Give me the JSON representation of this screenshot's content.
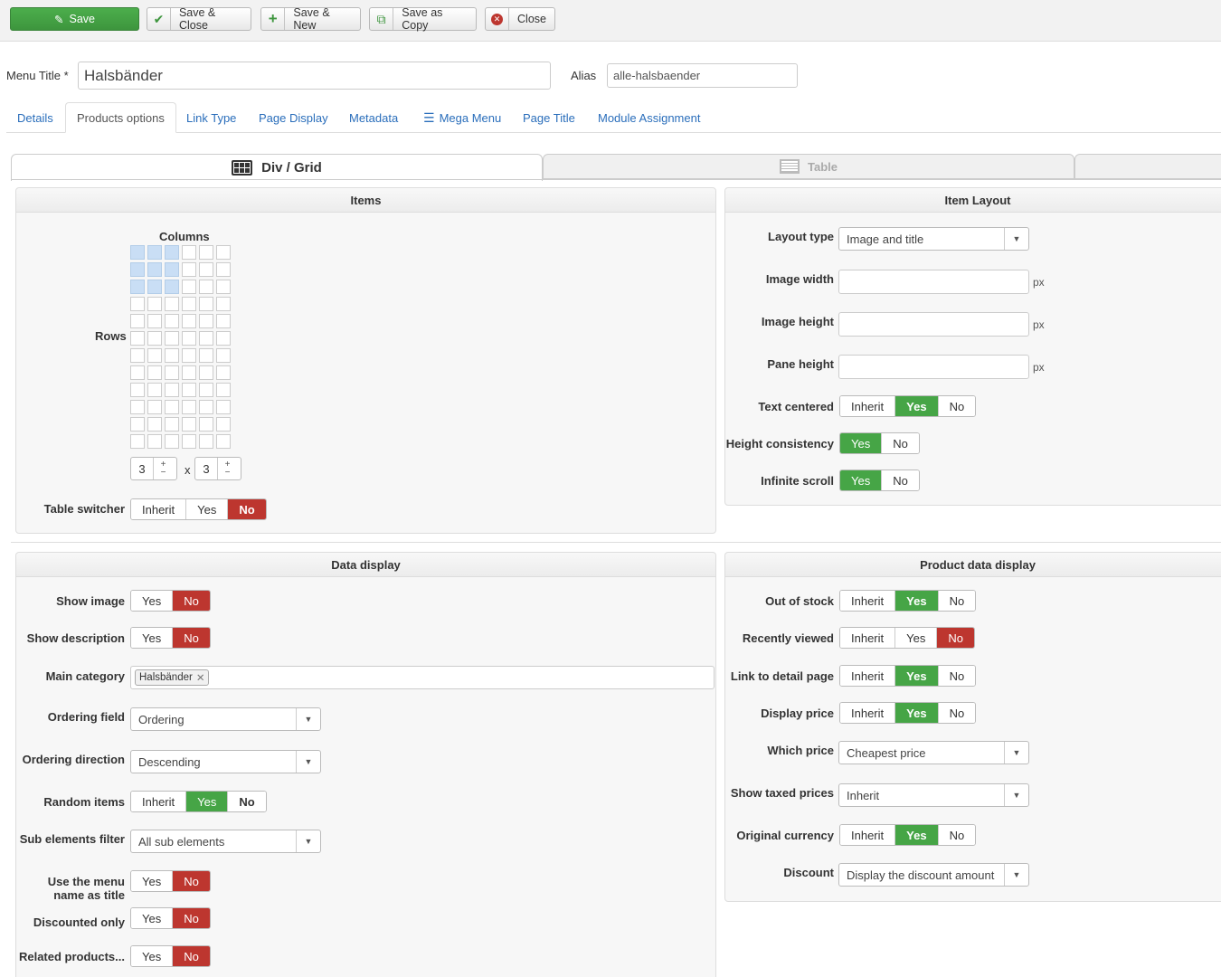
{
  "toolbar": {
    "save": "Save",
    "save_close": "Save & Close",
    "save_new": "Save & New",
    "save_copy": "Save as Copy",
    "close": "Close"
  },
  "header": {
    "menu_title_label": "Menu Title *",
    "menu_title_value": "Halsbänder",
    "alias_label": "Alias",
    "alias_value": "alle-halsbaender"
  },
  "tabs": [
    "Details",
    "Products options",
    "Link Type",
    "Page Display",
    "Metadata",
    "Mega Menu",
    "Page Title",
    "Module Assignment"
  ],
  "view_tabs": {
    "grid": "Div / Grid",
    "table": "Table"
  },
  "items": {
    "title": "Items",
    "columns_label": "Columns",
    "rows_label": "Rows",
    "grid_rows": 12,
    "grid_cols": 6,
    "selected_cols": 3,
    "selected_rows": 3,
    "col_value": "3",
    "row_value": "3",
    "times": "x",
    "table_switcher_label": "Table switcher",
    "table_switcher": [
      "Inherit",
      "Yes",
      "No"
    ]
  },
  "item_layout": {
    "title": "Item Layout",
    "layout_type_label": "Layout type",
    "layout_type_value": "Image and title",
    "image_width_label": "Image width",
    "image_height_label": "Image height",
    "pane_height_label": "Pane height",
    "unit": "px",
    "text_centered_label": "Text centered",
    "height_consistency_label": "Height consistency",
    "infinite_scroll_label": "Infinite scroll"
  },
  "data_display": {
    "title": "Data display",
    "show_image_label": "Show image",
    "show_description_label": "Show description",
    "main_category_label": "Main category",
    "main_category_tag": "Halsbänder",
    "ordering_field_label": "Ordering field",
    "ordering_field_value": "Ordering",
    "ordering_direction_label": "Ordering direction",
    "ordering_direction_value": "Descending",
    "random_items_label": "Random items",
    "sub_elements_label": "Sub elements filter",
    "sub_elements_value": "All sub elements",
    "use_menu_name_label_1": "Use the menu",
    "use_menu_name_label_2": "name as title",
    "discounted_only_label": "Discounted only",
    "related_products_label": "Related products..."
  },
  "product_data": {
    "title": "Product data display",
    "out_of_stock_label": "Out of stock",
    "recently_viewed_label": "Recently viewed",
    "link_detail_label": "Link to detail page",
    "display_price_label": "Display price",
    "which_price_label": "Which price",
    "which_price_value": "Cheapest price",
    "show_taxed_label": "Show taxed prices",
    "show_taxed_value": "Inherit",
    "original_currency_label": "Original currency",
    "discount_label": "Discount",
    "discount_value": "Display the discount amount"
  },
  "options": {
    "inherit": "Inherit",
    "yes": "Yes",
    "no": "No"
  },
  "colors": {
    "yes_active": "#46a546",
    "no_active": "#bd362f",
    "link": "#2a6ebb",
    "grid_selected": "#c9def5"
  }
}
